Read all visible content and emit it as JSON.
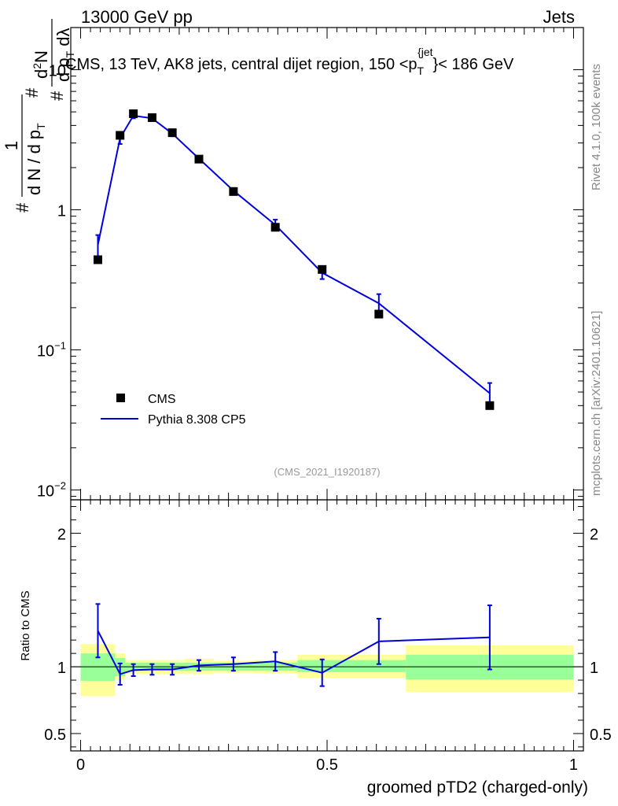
{
  "header": {
    "left": "13000 GeV pp",
    "right": "Jets"
  },
  "side_labels": {
    "upper": "Rivet 4.1.0,  100k events",
    "lower": "mcplots.cern.ch [arXiv:2401.10621]"
  },
  "chart_data": [
    {
      "type": "line",
      "panel": "main",
      "title": "CMS, 13 TeV, AK8 jets, central dijet region, 150 <p_T^{jet}< 186 GeV",
      "title_parts": {
        "prefix": "CMS, 13 TeV, AK8 jets, central dijet region, 150 <p",
        "sub": "T",
        "sup": "{jet",
        "suffix": "}< 186 GeV"
      },
      "ylabel": "1/(dN/dp_T) d²N/(dp_T dλ)",
      "ylabel_parts": {
        "hash1": "#",
        "one": "1",
        "hash2": "#",
        "dN": "d N / d p",
        "T": "T",
        "d2N": "d²N",
        "d2N_main": "d",
        "d2N_sup": "2",
        "d2N_tail": "N",
        "dpT": "d p",
        "dlambda": " dλ",
        "hash3": "#"
      },
      "yscale": "log",
      "ylim": [
        0.0085,
        20
      ],
      "xlim": [
        -0.02,
        1.02
      ],
      "yticks": [
        {
          "label_main": "10",
          "label_sup": "−2",
          "value": 0.01
        },
        {
          "label_main": "10",
          "label_sup": "−1",
          "value": 0.1
        },
        {
          "label_main": "1",
          "label_sup": "",
          "value": 1
        },
        {
          "label_main": "10",
          "label_sup": "",
          "value": 10
        }
      ],
      "watermark": "(CMS_2021_I1920187)",
      "legend": [
        {
          "name": "CMS",
          "marker": "square",
          "color": "#000000"
        },
        {
          "name": "Pythia 8.308 CP5",
          "marker": "line",
          "color": "#0000dd"
        }
      ],
      "series": [
        {
          "name": "CMS",
          "color": "#000000",
          "points": [
            {
              "x": 0.035,
              "y": 0.44
            },
            {
              "x": 0.08,
              "y": 3.4
            },
            {
              "x": 0.107,
              "y": 4.85
            },
            {
              "x": 0.145,
              "y": 4.55
            },
            {
              "x": 0.186,
              "y": 3.55
            },
            {
              "x": 0.24,
              "y": 2.3
            },
            {
              "x": 0.31,
              "y": 1.35
            },
            {
              "x": 0.395,
              "y": 0.75
            },
            {
              "x": 0.49,
              "y": 0.375
            },
            {
              "x": 0.605,
              "y": 0.18
            },
            {
              "x": 0.83,
              "y": 0.04
            }
          ]
        },
        {
          "name": "Pythia 8.308 CP5",
          "color": "#0000dd",
          "points": [
            {
              "x": 0.035,
              "y": 0.56,
              "err": 0.1
            },
            {
              "x": 0.08,
              "y": 3.25,
              "err": 0.3
            },
            {
              "x": 0.107,
              "y": 4.7,
              "err": 0.2
            },
            {
              "x": 0.145,
              "y": 4.5,
              "err": 0.18
            },
            {
              "x": 0.186,
              "y": 3.5,
              "err": 0.15
            },
            {
              "x": 0.24,
              "y": 2.32,
              "err": 0.1
            },
            {
              "x": 0.31,
              "y": 1.37,
              "err": 0.06
            },
            {
              "x": 0.395,
              "y": 0.78,
              "err": 0.07
            },
            {
              "x": 0.49,
              "y": 0.355,
              "err": 0.035
            },
            {
              "x": 0.605,
              "y": 0.215,
              "err": 0.035
            },
            {
              "x": 0.83,
              "y": 0.049,
              "err": 0.009
            }
          ]
        }
      ]
    },
    {
      "type": "line",
      "panel": "ratio",
      "xlabel": "groomed pTD2 (charged-only)",
      "ylabel": "Ratio to CMS",
      "ylim": [
        0.37,
        2.25
      ],
      "xlim": [
        -0.02,
        1.02
      ],
      "xticks": [
        {
          "label": "0",
          "value": 0
        },
        {
          "label": "0.5",
          "value": 0.5
        },
        {
          "label": "1",
          "value": 1
        }
      ],
      "yticks": [
        {
          "label": "0.5",
          "value": 0.5
        },
        {
          "label": "1",
          "value": 1
        },
        {
          "label": "2",
          "value": 2
        }
      ],
      "bands": [
        {
          "x0": 0.0,
          "x1": 0.07,
          "y1_lo": 0.895,
          "y1_hi": 1.1,
          "y2_lo": 0.78,
          "y2_hi": 1.17
        },
        {
          "x0": 0.07,
          "x1": 0.09,
          "y1_lo": 0.93,
          "y1_hi": 1.065,
          "y2_lo": 0.9,
          "y2_hi": 1.1
        },
        {
          "x0": 0.09,
          "x1": 0.21,
          "y1_lo": 0.97,
          "y1_hi": 1.03,
          "y2_lo": 0.945,
          "y2_hi": 1.05
        },
        {
          "x0": 0.21,
          "x1": 0.27,
          "y1_lo": 0.97,
          "y1_hi": 1.03,
          "y2_lo": 0.945,
          "y2_hi": 1.06
        },
        {
          "x0": 0.27,
          "x1": 0.35,
          "y1_lo": 0.97,
          "y1_hi": 1.03,
          "y2_lo": 0.955,
          "y2_hi": 1.045
        },
        {
          "x0": 0.35,
          "x1": 0.44,
          "y1_lo": 0.97,
          "y1_hi": 1.03,
          "y2_lo": 0.95,
          "y2_hi": 1.05
        },
        {
          "x0": 0.44,
          "x1": 0.66,
          "y1_lo": 0.96,
          "y1_hi": 1.05,
          "y2_lo": 0.915,
          "y2_hi": 1.09
        },
        {
          "x0": 0.66,
          "x1": 1.0,
          "y1_lo": 0.905,
          "y1_hi": 1.09,
          "y2_lo": 0.81,
          "y2_hi": 1.16
        }
      ],
      "band_colors": {
        "inner": "#99ff99",
        "outer": "#ffff99"
      },
      "series": [
        {
          "name": "Pythia 8.308 CP5 / CMS",
          "color": "#0000dd",
          "points": [
            {
              "x": 0.035,
              "y": 1.27,
              "err": 0.2
            },
            {
              "x": 0.08,
              "y": 0.945,
              "err": 0.08
            },
            {
              "x": 0.107,
              "y": 0.975,
              "err": 0.045
            },
            {
              "x": 0.145,
              "y": 0.98,
              "err": 0.04
            },
            {
              "x": 0.186,
              "y": 0.98,
              "err": 0.04
            },
            {
              "x": 0.24,
              "y": 1.01,
              "err": 0.04
            },
            {
              "x": 0.31,
              "y": 1.02,
              "err": 0.05
            },
            {
              "x": 0.395,
              "y": 1.04,
              "err": 0.07
            },
            {
              "x": 0.49,
              "y": 0.955,
              "err": 0.1
            },
            {
              "x": 0.605,
              "y": 1.19,
              "err": 0.17
            },
            {
              "x": 0.83,
              "y": 1.22,
              "err": 0.24
            }
          ]
        }
      ]
    }
  ]
}
